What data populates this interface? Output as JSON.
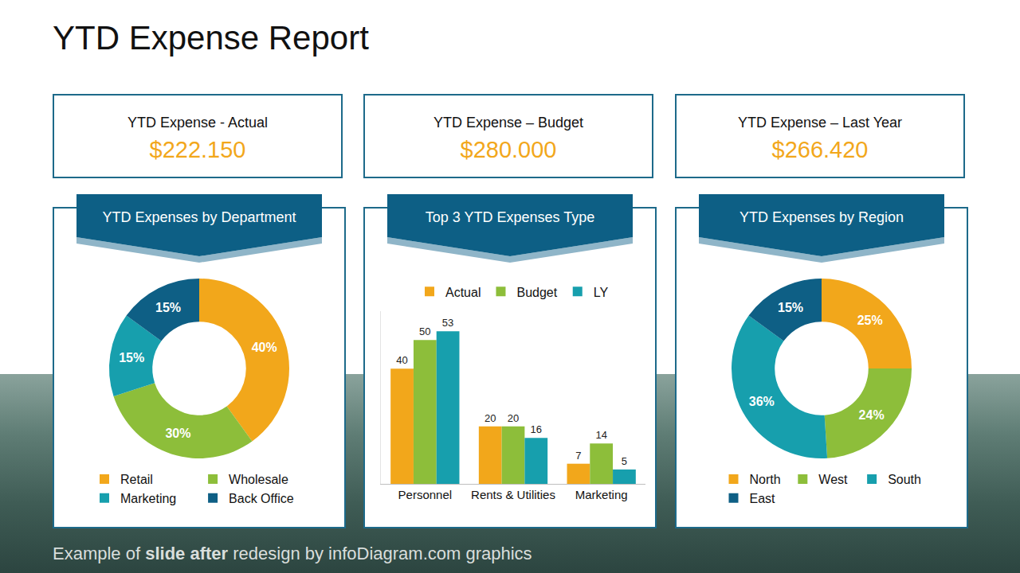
{
  "title": "YTD Expense Report",
  "kpis": [
    {
      "label": "YTD Expense - Actual",
      "value": "$222.150"
    },
    {
      "label": "YTD Expense – Budget",
      "value": "$280.000"
    },
    {
      "label": "YTD Expense – Last Year",
      "value": "$266.420"
    }
  ],
  "chart_data": [
    {
      "type": "donut",
      "title": "YTD Expenses by Department",
      "categories": [
        "Retail",
        "Wholesale",
        "Marketing",
        "Back Office"
      ],
      "values": [
        40,
        30,
        15,
        15
      ],
      "value_labels": [
        "40%",
        "30%",
        "15%",
        "15%"
      ],
      "colors": [
        "#f2a71b",
        "#8dbe3a",
        "#179fad",
        "#0e5f85"
      ],
      "data_labels": true,
      "legend": "bottom"
    },
    {
      "type": "bar",
      "title": "Top 3 YTD Expenses Type",
      "categories": [
        "Personnel",
        "Rents & Utilities",
        "Marketing"
      ],
      "series": [
        {
          "name": "Actual",
          "color": "#f2a71b",
          "values": [
            40,
            20,
            7
          ]
        },
        {
          "name": "Budget",
          "color": "#8dbe3a",
          "values": [
            50,
            20,
            14
          ]
        },
        {
          "name": "LY",
          "color": "#179fad",
          "values": [
            53,
            16,
            5
          ]
        }
      ],
      "ylim": [
        0,
        60
      ],
      "tick_labels": "x",
      "data_labels": true,
      "legend": "top",
      "grid": false
    },
    {
      "type": "donut",
      "title": "YTD Expenses by Region",
      "categories": [
        "North",
        "West",
        "South",
        "East"
      ],
      "values": [
        25,
        24,
        36,
        15
      ],
      "value_labels": [
        "25%",
        "24%",
        "36%",
        "15%"
      ],
      "colors": [
        "#f2a71b",
        "#8dbe3a",
        "#179fad",
        "#0e5f85"
      ],
      "data_labels": true,
      "legend": "bottom"
    }
  ],
  "footer": {
    "before": "Example of",
    "bold": "slide after",
    "after": "redesign by infoDiagram.com graphics"
  }
}
